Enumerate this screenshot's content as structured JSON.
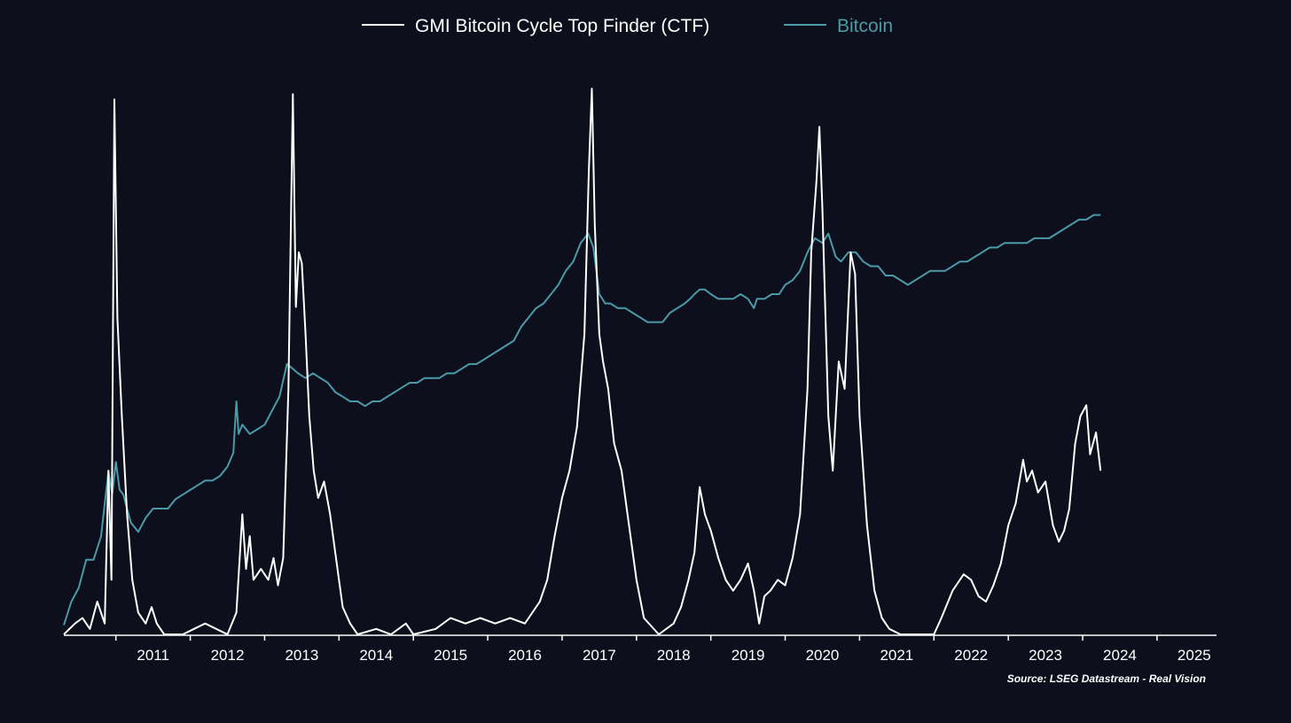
{
  "chart_data": {
    "type": "line",
    "title": "",
    "xlabel": "",
    "ylabel": "",
    "grid": false,
    "legend_position": "top-center",
    "x_range": [
      2010.3,
      2025.8
    ],
    "x_ticks": [
      "2011",
      "2012",
      "2013",
      "2014",
      "2015",
      "2016",
      "2017",
      "2018",
      "2019",
      "2020",
      "2021",
      "2022",
      "2023",
      "2024",
      "2025"
    ],
    "source_note": "Source: LSEG Datastream - Real Vision",
    "colors": {
      "background": "#0e0f1c",
      "ctf": "#ffffff",
      "bitcoin": "#4a9aa8",
      "axis": "#ffffff"
    },
    "series": [
      {
        "name": "GMI Bitcoin Cycle Top Finder (CTF)",
        "y_range": [
          0,
          100
        ],
        "points": [
          [
            2010.3,
            0
          ],
          [
            2010.45,
            2
          ],
          [
            2010.55,
            3
          ],
          [
            2010.65,
            1
          ],
          [
            2010.75,
            6
          ],
          [
            2010.85,
            2
          ],
          [
            2010.9,
            30
          ],
          [
            2010.94,
            10
          ],
          [
            2010.98,
            98
          ],
          [
            2011.02,
            58
          ],
          [
            2011.08,
            40
          ],
          [
            2011.15,
            22
          ],
          [
            2011.22,
            10
          ],
          [
            2011.3,
            4
          ],
          [
            2011.4,
            2
          ],
          [
            2011.48,
            5
          ],
          [
            2011.55,
            2
          ],
          [
            2011.65,
            0
          ],
          [
            2011.9,
            0
          ],
          [
            2012.05,
            1
          ],
          [
            2012.2,
            2
          ],
          [
            2012.35,
            1
          ],
          [
            2012.5,
            0
          ],
          [
            2012.62,
            4
          ],
          [
            2012.7,
            22
          ],
          [
            2012.75,
            12
          ],
          [
            2012.8,
            18
          ],
          [
            2012.85,
            10
          ],
          [
            2012.95,
            12
          ],
          [
            2013.05,
            10
          ],
          [
            2013.12,
            14
          ],
          [
            2013.18,
            9
          ],
          [
            2013.25,
            14
          ],
          [
            2013.32,
            45
          ],
          [
            2013.38,
            99
          ],
          [
            2013.42,
            60
          ],
          [
            2013.46,
            70
          ],
          [
            2013.5,
            68
          ],
          [
            2013.55,
            55
          ],
          [
            2013.6,
            40
          ],
          [
            2013.66,
            30
          ],
          [
            2013.72,
            25
          ],
          [
            2013.8,
            28
          ],
          [
            2013.88,
            22
          ],
          [
            2013.95,
            15
          ],
          [
            2014.05,
            5
          ],
          [
            2014.15,
            2
          ],
          [
            2014.25,
            0
          ],
          [
            2014.5,
            1
          ],
          [
            2014.7,
            0
          ],
          [
            2014.9,
            2
          ],
          [
            2015.0,
            0
          ],
          [
            2015.3,
            1
          ],
          [
            2015.5,
            3
          ],
          [
            2015.7,
            2
          ],
          [
            2015.9,
            3
          ],
          [
            2016.1,
            2
          ],
          [
            2016.3,
            3
          ],
          [
            2016.5,
            2
          ],
          [
            2016.7,
            6
          ],
          [
            2016.8,
            10
          ],
          [
            2016.9,
            18
          ],
          [
            2017.0,
            25
          ],
          [
            2017.1,
            30
          ],
          [
            2017.2,
            38
          ],
          [
            2017.3,
            55
          ],
          [
            2017.36,
            85
          ],
          [
            2017.4,
            100
          ],
          [
            2017.44,
            75
          ],
          [
            2017.5,
            55
          ],
          [
            2017.55,
            50
          ],
          [
            2017.62,
            45
          ],
          [
            2017.7,
            35
          ],
          [
            2017.8,
            30
          ],
          [
            2017.9,
            20
          ],
          [
            2018.0,
            10
          ],
          [
            2018.1,
            3
          ],
          [
            2018.3,
            0
          ],
          [
            2018.5,
            2
          ],
          [
            2018.6,
            5
          ],
          [
            2018.7,
            10
          ],
          [
            2018.78,
            15
          ],
          [
            2018.85,
            27
          ],
          [
            2018.92,
            22
          ],
          [
            2019.0,
            19
          ],
          [
            2019.1,
            14
          ],
          [
            2019.2,
            10
          ],
          [
            2019.3,
            8
          ],
          [
            2019.4,
            10
          ],
          [
            2019.5,
            13
          ],
          [
            2019.58,
            8
          ],
          [
            2019.65,
            2
          ],
          [
            2019.72,
            7
          ],
          [
            2019.8,
            8
          ],
          [
            2019.9,
            10
          ],
          [
            2020.0,
            9
          ],
          [
            2020.1,
            14
          ],
          [
            2020.2,
            22
          ],
          [
            2020.3,
            45
          ],
          [
            2020.35,
            70
          ],
          [
            2020.42,
            83
          ],
          [
            2020.46,
            93
          ],
          [
            2020.5,
            78
          ],
          [
            2020.58,
            40
          ],
          [
            2020.64,
            30
          ],
          [
            2020.72,
            50
          ],
          [
            2020.8,
            45
          ],
          [
            2020.88,
            70
          ],
          [
            2020.94,
            66
          ],
          [
            2021.0,
            40
          ],
          [
            2021.1,
            20
          ],
          [
            2021.2,
            8
          ],
          [
            2021.3,
            3
          ],
          [
            2021.4,
            1
          ],
          [
            2021.55,
            0
          ],
          [
            2021.8,
            0
          ],
          [
            2022.0,
            0
          ],
          [
            2022.1,
            3
          ],
          [
            2022.25,
            8
          ],
          [
            2022.4,
            11
          ],
          [
            2022.5,
            10
          ],
          [
            2022.6,
            7
          ],
          [
            2022.7,
            6
          ],
          [
            2022.8,
            9
          ],
          [
            2022.9,
            13
          ],
          [
            2023.0,
            20
          ],
          [
            2023.1,
            24
          ],
          [
            2023.2,
            32
          ],
          [
            2023.25,
            28
          ],
          [
            2023.32,
            30
          ],
          [
            2023.4,
            26
          ],
          [
            2023.5,
            28
          ],
          [
            2023.6,
            20
          ],
          [
            2023.68,
            17
          ],
          [
            2023.75,
            19
          ],
          [
            2023.82,
            23
          ],
          [
            2023.9,
            35
          ],
          [
            2023.97,
            40
          ],
          [
            2024.05,
            42
          ],
          [
            2024.1,
            33
          ],
          [
            2024.18,
            37
          ],
          [
            2024.24,
            30
          ]
        ]
      },
      {
        "name": "Bitcoin",
        "y_range": [
          0,
          100
        ],
        "points": [
          [
            2010.3,
            2
          ],
          [
            2010.4,
            7
          ],
          [
            2010.5,
            10
          ],
          [
            2010.6,
            16
          ],
          [
            2010.7,
            16
          ],
          [
            2010.8,
            21
          ],
          [
            2010.9,
            35
          ],
          [
            2010.95,
            30
          ],
          [
            2011.0,
            37
          ],
          [
            2011.05,
            31
          ],
          [
            2011.1,
            30
          ],
          [
            2011.2,
            24
          ],
          [
            2011.3,
            22
          ],
          [
            2011.4,
            25
          ],
          [
            2011.5,
            27
          ],
          [
            2011.6,
            27
          ],
          [
            2011.7,
            27
          ],
          [
            2011.8,
            29
          ],
          [
            2011.9,
            30
          ],
          [
            2012.0,
            31
          ],
          [
            2012.1,
            32
          ],
          [
            2012.2,
            33
          ],
          [
            2012.3,
            33
          ],
          [
            2012.4,
            34
          ],
          [
            2012.5,
            36
          ],
          [
            2012.58,
            39
          ],
          [
            2012.62,
            50
          ],
          [
            2012.65,
            43
          ],
          [
            2012.7,
            45
          ],
          [
            2012.8,
            43
          ],
          [
            2012.9,
            44
          ],
          [
            2013.0,
            45
          ],
          [
            2013.1,
            48
          ],
          [
            2013.2,
            51
          ],
          [
            2013.3,
            58
          ],
          [
            2013.38,
            57
          ],
          [
            2013.45,
            56
          ],
          [
            2013.55,
            55
          ],
          [
            2013.65,
            56
          ],
          [
            2013.75,
            55
          ],
          [
            2013.85,
            54
          ],
          [
            2013.95,
            52
          ],
          [
            2014.05,
            51
          ],
          [
            2014.15,
            50
          ],
          [
            2014.25,
            50
          ],
          [
            2014.35,
            49
          ],
          [
            2014.45,
            50
          ],
          [
            2014.55,
            50
          ],
          [
            2014.65,
            51
          ],
          [
            2014.75,
            52
          ],
          [
            2014.85,
            53
          ],
          [
            2014.95,
            54
          ],
          [
            2015.05,
            54
          ],
          [
            2015.15,
            55
          ],
          [
            2015.25,
            55
          ],
          [
            2015.35,
            55
          ],
          [
            2015.45,
            56
          ],
          [
            2015.55,
            56
          ],
          [
            2015.65,
            57
          ],
          [
            2015.75,
            58
          ],
          [
            2015.85,
            58
          ],
          [
            2015.95,
            59
          ],
          [
            2016.05,
            60
          ],
          [
            2016.15,
            61
          ],
          [
            2016.25,
            62
          ],
          [
            2016.35,
            63
          ],
          [
            2016.45,
            66
          ],
          [
            2016.55,
            68
          ],
          [
            2016.65,
            70
          ],
          [
            2016.75,
            71
          ],
          [
            2016.85,
            73
          ],
          [
            2016.95,
            75
          ],
          [
            2017.05,
            78
          ],
          [
            2017.15,
            80
          ],
          [
            2017.25,
            84
          ],
          [
            2017.35,
            86
          ],
          [
            2017.42,
            83
          ],
          [
            2017.5,
            73
          ],
          [
            2017.58,
            71
          ],
          [
            2017.65,
            71
          ],
          [
            2017.75,
            70
          ],
          [
            2017.85,
            70
          ],
          [
            2017.95,
            69
          ],
          [
            2018.05,
            68
          ],
          [
            2018.15,
            67
          ],
          [
            2018.25,
            67
          ],
          [
            2018.35,
            67
          ],
          [
            2018.45,
            69
          ],
          [
            2018.55,
            70
          ],
          [
            2018.65,
            71
          ],
          [
            2018.72,
            72
          ],
          [
            2018.78,
            73
          ],
          [
            2018.85,
            74
          ],
          [
            2018.92,
            74
          ],
          [
            2019.0,
            73
          ],
          [
            2019.1,
            72
          ],
          [
            2019.2,
            72
          ],
          [
            2019.3,
            72
          ],
          [
            2019.4,
            73
          ],
          [
            2019.5,
            72
          ],
          [
            2019.58,
            70
          ],
          [
            2019.62,
            72
          ],
          [
            2019.72,
            72
          ],
          [
            2019.82,
            73
          ],
          [
            2019.92,
            73
          ],
          [
            2020.0,
            75
          ],
          [
            2020.1,
            76
          ],
          [
            2020.2,
            78
          ],
          [
            2020.3,
            82
          ],
          [
            2020.4,
            85
          ],
          [
            2020.5,
            84
          ],
          [
            2020.58,
            86
          ],
          [
            2020.68,
            81
          ],
          [
            2020.75,
            80
          ],
          [
            2020.85,
            82
          ],
          [
            2020.95,
            82
          ],
          [
            2021.05,
            80
          ],
          [
            2021.15,
            79
          ],
          [
            2021.25,
            79
          ],
          [
            2021.35,
            77
          ],
          [
            2021.45,
            77
          ],
          [
            2021.55,
            76
          ],
          [
            2021.65,
            75
          ],
          [
            2021.75,
            76
          ],
          [
            2021.85,
            77
          ],
          [
            2021.95,
            78
          ],
          [
            2022.05,
            78
          ],
          [
            2022.15,
            78
          ],
          [
            2022.25,
            79
          ],
          [
            2022.35,
            80
          ],
          [
            2022.45,
            80
          ],
          [
            2022.55,
            81
          ],
          [
            2022.65,
            82
          ],
          [
            2022.75,
            83
          ],
          [
            2022.85,
            83
          ],
          [
            2022.95,
            84
          ],
          [
            2023.05,
            84
          ],
          [
            2023.15,
            84
          ],
          [
            2023.25,
            84
          ],
          [
            2023.35,
            85
          ],
          [
            2023.45,
            85
          ],
          [
            2023.55,
            85
          ],
          [
            2023.65,
            86
          ],
          [
            2023.75,
            87
          ],
          [
            2023.85,
            88
          ],
          [
            2023.95,
            89
          ],
          [
            2024.05,
            89
          ],
          [
            2024.15,
            90
          ],
          [
            2024.24,
            90
          ]
        ]
      }
    ]
  }
}
